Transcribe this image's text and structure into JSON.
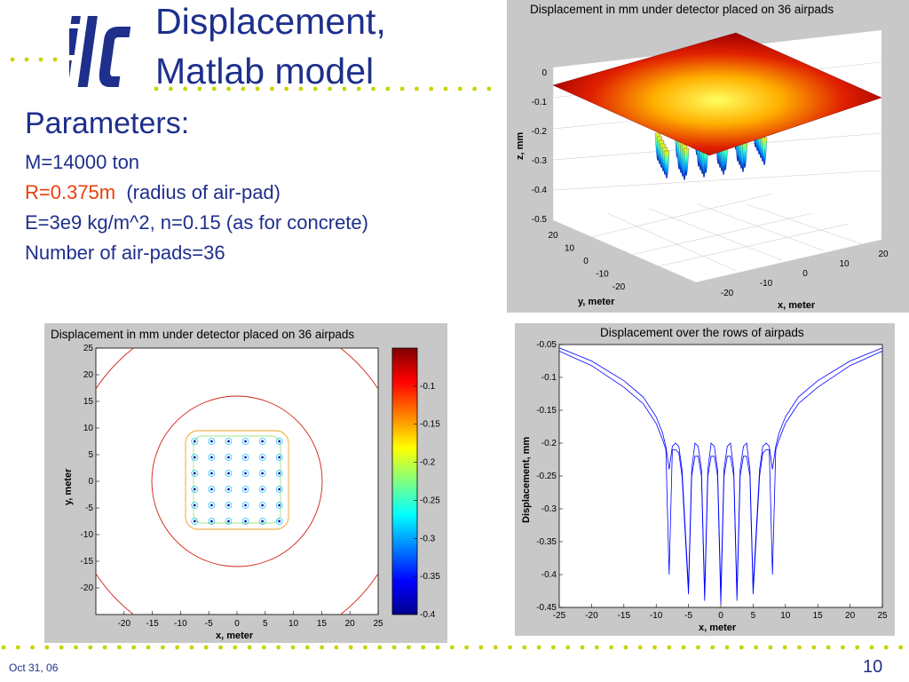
{
  "slide": {
    "title_line1": "Displacement,",
    "title_line2": "Matlab model",
    "logo_text": "ilc",
    "date": "Oct 31, 06",
    "page_number": "10"
  },
  "params": {
    "heading": "Parameters:",
    "mass": "M=14000 ton",
    "radius": "R=0.375m",
    "radius_note": "(radius of air-pad)",
    "material": "E=3e9 kg/m^2, n=0.15 (as for concrete)",
    "airpads": "Number of air-pads=36"
  },
  "colors": {
    "accent": "#1e2f8c",
    "highlight": "#e8400a",
    "dots": "#c8d400"
  },
  "chart_data": [
    {
      "type": "surface",
      "title": "Displacement in mm under detector placed on 36 airpads",
      "xlabel": "x, meter",
      "ylabel": "y, meter",
      "zlabel": "z, mm",
      "x_ticks": [
        "-20",
        "-10",
        "0",
        "10",
        "20"
      ],
      "y_ticks": [
        "20",
        "10",
        "0",
        "-10",
        "-20"
      ],
      "z_ticks": [
        "0",
        "-0.1",
        "-0.2",
        "-0.3",
        "-0.4",
        "-0.5"
      ],
      "zlim": [
        -0.5,
        0
      ]
    },
    {
      "type": "contour",
      "title": "Displacement in mm under detector placed on 36 airpads",
      "xlabel": "x, meter",
      "ylabel": "y, meter",
      "x_ticks": [
        "-20",
        "-15",
        "-10",
        "-5",
        "0",
        "5",
        "10",
        "15",
        "20",
        "25"
      ],
      "y_ticks": [
        "25",
        "20",
        "15",
        "10",
        "5",
        "0",
        "-5",
        "-10",
        "-15",
        "-20"
      ],
      "xlim": [
        -25,
        25
      ],
      "ylim": [
        -25,
        25
      ],
      "colorbar_ticks": [
        "-0.1",
        "-0.15",
        "-0.2",
        "-0.25",
        "-0.3",
        "-0.35",
        "-0.4"
      ],
      "colorbar_range": [
        -0.4,
        -0.05
      ]
    },
    {
      "type": "line",
      "title": "Displacement over the rows of airpads",
      "xlabel": "x, meter",
      "ylabel": "Displacement, mm",
      "x_ticks": [
        "-25",
        "-20",
        "-15",
        "-10",
        "-5",
        "0",
        "5",
        "10",
        "15",
        "20",
        "25"
      ],
      "y_ticks": [
        "-0.05",
        "-0.1",
        "-0.15",
        "-0.2",
        "-0.25",
        "-0.3",
        "-0.35",
        "-0.4",
        "-0.45"
      ],
      "xlim": [
        -25,
        25
      ],
      "ylim": [
        -0.45,
        -0.05
      ],
      "series": [
        {
          "x": [
            -25,
            -20,
            -15,
            -12,
            -10,
            -9,
            -8.5,
            -8,
            -7.5,
            -7,
            -6.5,
            -6,
            -5,
            -4.5,
            -4,
            -3.5,
            -3,
            -2.5,
            -2,
            -1.5,
            -1,
            -0.5,
            0,
            0.5,
            1,
            1.5,
            2,
            2.5,
            3,
            3.5,
            4,
            4.5,
            5,
            6,
            6.5,
            7,
            7.5,
            8,
            8.5,
            9,
            10,
            12,
            15,
            20,
            25
          ],
          "y": [
            -0.055,
            -0.075,
            -0.105,
            -0.13,
            -0.16,
            -0.185,
            -0.205,
            -0.24,
            -0.205,
            -0.2,
            -0.205,
            -0.24,
            -0.42,
            -0.24,
            -0.2,
            -0.205,
            -0.24,
            -0.43,
            -0.24,
            -0.2,
            -0.205,
            -0.24,
            -0.43,
            -0.24,
            -0.205,
            -0.2,
            -0.24,
            -0.43,
            -0.24,
            -0.205,
            -0.2,
            -0.24,
            -0.42,
            -0.24,
            -0.205,
            -0.2,
            -0.205,
            -0.24,
            -0.205,
            -0.185,
            -0.16,
            -0.13,
            -0.105,
            -0.075,
            -0.055
          ]
        },
        {
          "x": [
            -25,
            -20,
            -15,
            -12,
            -10,
            -9,
            -8.5,
            -8,
            -7.5,
            -7,
            -6.5,
            -6,
            -5,
            -4.5,
            -4,
            -3.5,
            -3,
            -2.5,
            -2,
            -1.5,
            -1,
            -0.5,
            0,
            0.5,
            1,
            1.5,
            2,
            2.5,
            3,
            3.5,
            4,
            4.5,
            5,
            6,
            6.5,
            7,
            7.5,
            8,
            8.5,
            9,
            10,
            12,
            15,
            20,
            25
          ],
          "y": [
            -0.06,
            -0.082,
            -0.115,
            -0.14,
            -0.17,
            -0.195,
            -0.21,
            -0.4,
            -0.21,
            -0.21,
            -0.215,
            -0.25,
            -0.43,
            -0.25,
            -0.22,
            -0.22,
            -0.25,
            -0.44,
            -0.25,
            -0.22,
            -0.22,
            -0.25,
            -0.445,
            -0.25,
            -0.22,
            -0.22,
            -0.25,
            -0.44,
            -0.25,
            -0.22,
            -0.22,
            -0.25,
            -0.43,
            -0.25,
            -0.215,
            -0.21,
            -0.21,
            -0.4,
            -0.21,
            -0.195,
            -0.17,
            -0.14,
            -0.115,
            -0.082,
            -0.06
          ]
        }
      ]
    }
  ]
}
